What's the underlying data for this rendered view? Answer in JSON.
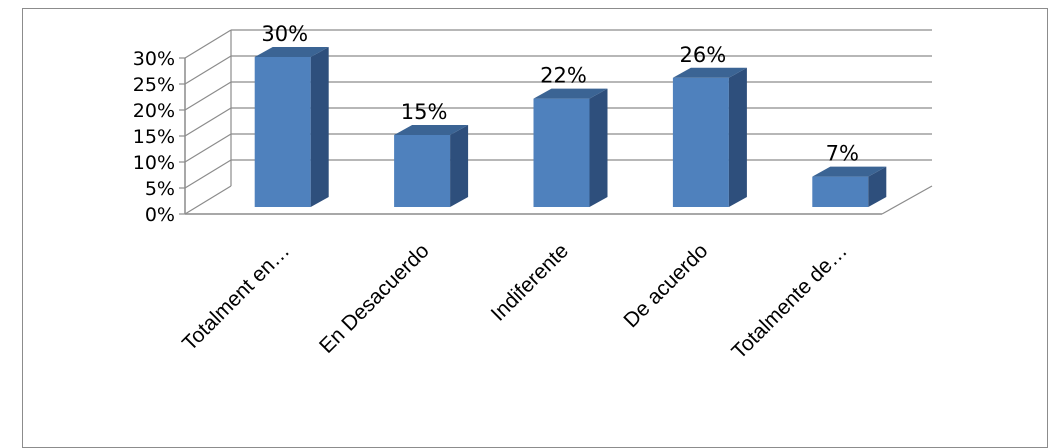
{
  "chart_data": {
    "type": "bar",
    "style": "3d-column",
    "categories": [
      "Totalment en…",
      "En Desacuerdo",
      "Indiferente",
      "De acuerdo",
      "Totalmente de…"
    ],
    "values": [
      30,
      15,
      22,
      26,
      7
    ],
    "data_labels": [
      "30%",
      "15%",
      "22%",
      "26%",
      "7%"
    ],
    "yticks": [
      "0%",
      "5%",
      "10%",
      "15%",
      "20%",
      "25%",
      "30%"
    ],
    "ylim": [
      0,
      30
    ],
    "grid": true,
    "legend": "none",
    "colors": {
      "front": "#4f81bd",
      "side": "#2e4f7c",
      "top": "#3b6494",
      "grid": "#8c8c8c"
    }
  }
}
